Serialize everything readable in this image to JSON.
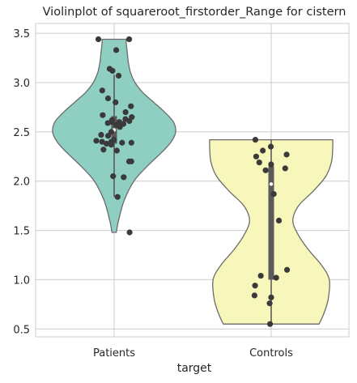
{
  "chart_data": {
    "type": "violin",
    "title": "Violinplot of squareroot_firstorder_Range for cistern",
    "xlabel": "target",
    "ylabel": "",
    "categories": [
      "Patients",
      "Controls"
    ],
    "ylim": [
      0.42,
      3.6
    ],
    "yticks": [
      0.5,
      1.0,
      1.5,
      2.0,
      2.5,
      3.0,
      3.5
    ],
    "ytick_labels": [
      "0.5",
      "1.0",
      "1.5",
      "2.0",
      "2.5",
      "3.0",
      "3.5"
    ],
    "grid": true,
    "series": [
      {
        "category": "Patients",
        "color": "#8ecfc1",
        "range": [
          1.48,
          3.44
        ],
        "quartiles": [
          2.38,
          2.52,
          2.66
        ],
        "median": 2.52,
        "whiskers": [
          1.84,
          3.08
        ],
        "density": [
          [
            1.48,
            2
          ],
          [
            1.6,
            4
          ],
          [
            1.8,
            9
          ],
          [
            2.0,
            18
          ],
          [
            2.15,
            30
          ],
          [
            2.3,
            44
          ],
          [
            2.4,
            52
          ],
          [
            2.5,
            56
          ],
          [
            2.6,
            54
          ],
          [
            2.7,
            46
          ],
          [
            2.8,
            36
          ],
          [
            2.9,
            26
          ],
          [
            3.0,
            19
          ],
          [
            3.1,
            15
          ],
          [
            3.2,
            13
          ],
          [
            3.3,
            12
          ],
          [
            3.4,
            11
          ],
          [
            3.44,
            11
          ]
        ],
        "points": [
          3.44,
          3.44,
          3.33,
          3.14,
          3.12,
          3.07,
          2.92,
          2.84,
          2.8,
          2.76,
          2.7,
          2.67,
          2.65,
          2.63,
          2.62,
          2.61,
          2.6,
          2.6,
          2.59,
          2.58,
          2.57,
          2.55,
          2.5,
          2.47,
          2.46,
          2.42,
          2.41,
          2.4,
          2.4,
          2.39,
          2.39,
          2.38,
          2.37,
          2.32,
          2.31,
          2.2,
          2.2,
          2.05,
          2.04,
          1.84,
          1.48
        ]
      },
      {
        "category": "Controls",
        "color": "#f7f7bb",
        "range": [
          0.55,
          2.42
        ],
        "quartiles": [
          1.0,
          1.97,
          2.15
        ],
        "median": 1.97,
        "whiskers": [
          0.55,
          2.42
        ],
        "density": [
          [
            0.55,
            42
          ],
          [
            0.65,
            46
          ],
          [
            0.8,
            50
          ],
          [
            1.0,
            51
          ],
          [
            1.15,
            44
          ],
          [
            1.3,
            33
          ],
          [
            1.45,
            24
          ],
          [
            1.6,
            19
          ],
          [
            1.75,
            24
          ],
          [
            1.9,
            37
          ],
          [
            2.05,
            48
          ],
          [
            2.2,
            53
          ],
          [
            2.35,
            54
          ],
          [
            2.42,
            54
          ]
        ],
        "points": [
          2.42,
          2.35,
          2.31,
          2.27,
          2.25,
          2.19,
          2.17,
          2.13,
          2.11,
          1.87,
          1.6,
          1.1,
          1.04,
          1.02,
          0.94,
          0.84,
          0.82,
          0.76,
          0.55
        ]
      }
    ]
  }
}
